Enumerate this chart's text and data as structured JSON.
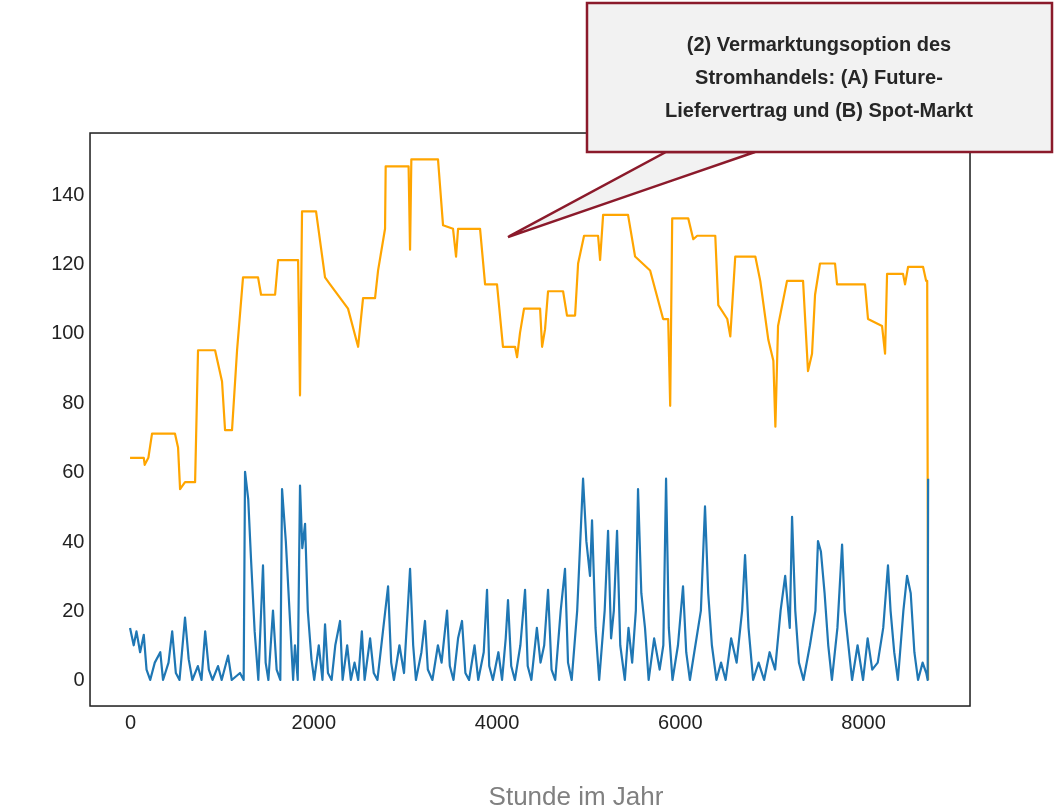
{
  "chart_data": {
    "type": "line",
    "xlabel": "Stunde im Jahr",
    "xlim": [
      -437,
      9167
    ],
    "ylim": [
      -7.5,
      157.6
    ],
    "xticks": [
      0,
      2000,
      4000,
      6000,
      8000
    ],
    "yticks": [
      0,
      20,
      40,
      60,
      80,
      100,
      120,
      140
    ],
    "grid": false,
    "line_style": "solid",
    "marker": "none",
    "annotations": [
      "(2) Vermarktungsoption des Stromhandels: (A) Future-Liefervertrag und (B) Spot-Markt"
    ],
    "series": [
      {
        "color": "#ffa500",
        "x": [
          0,
          150,
          160,
          200,
          240,
          490,
          524,
          546,
          600,
          710,
          742,
          928,
          1004,
          1037,
          1113,
          1168,
          1233,
          1397,
          1430,
          1583,
          1616,
          1834,
          1855,
          1877,
          2030,
          2128,
          2183,
          2379,
          2489,
          2543,
          2674,
          2707,
          2783,
          2790,
          3040,
          3056,
          3070,
          3361,
          3416,
          3525,
          3558,
          3580,
          3820,
          3875,
          4005,
          4070,
          4202,
          4224,
          4256,
          4300,
          4475,
          4497,
          4529,
          4562,
          4726,
          4769,
          4857,
          4890,
          4955,
          5108,
          5130,
          5163,
          5435,
          5512,
          5676,
          5818,
          5873,
          5895,
          5917,
          6092,
          6147,
          6190,
          6387,
          6420,
          6518,
          6551,
          6605,
          6824,
          6878,
          6966,
          7021,
          7043,
          7072,
          7170,
          7345,
          7399,
          7443,
          7476,
          7530,
          7694,
          7716,
          8021,
          8054,
          8207,
          8240,
          8262,
          8436,
          8458,
          8491,
          8655,
          8688,
          8700,
          8710
        ],
        "values": [
          64,
          64,
          62,
          64,
          71,
          71,
          67,
          55,
          57,
          57,
          95,
          95,
          86,
          72,
          72,
          95,
          116,
          116,
          111,
          111,
          121,
          121,
          82,
          135,
          135,
          116,
          114,
          107,
          96,
          110,
          110,
          118,
          130,
          148,
          148,
          124,
          150,
          150,
          131,
          130,
          122,
          130,
          130,
          114,
          114,
          96,
          96,
          93,
          100,
          107,
          107,
          96,
          101,
          112,
          112,
          105,
          105,
          120,
          128,
          128,
          121,
          134,
          134,
          122,
          118,
          104,
          104,
          79,
          133,
          133,
          127,
          128,
          128,
          108,
          104,
          99,
          122,
          122,
          115,
          98,
          92,
          73,
          102,
          115,
          115,
          89,
          94,
          111,
          120,
          120,
          114,
          114,
          104,
          102,
          94,
          117,
          117,
          114,
          119,
          119,
          115,
          115,
          0
        ]
      },
      {
        "color": "#1f77b4",
        "x": [
          0,
          40,
          70,
          110,
          150,
          180,
          220,
          270,
          330,
          360,
          420,
          460,
          500,
          540,
          600,
          640,
          680,
          740,
          780,
          820,
          860,
          900,
          960,
          1000,
          1070,
          1110,
          1200,
          1240,
          1255,
          1290,
          1320,
          1360,
          1400,
          1451,
          1480,
          1510,
          1560,
          1600,
          1640,
          1659,
          1700,
          1740,
          1780,
          1800,
          1830,
          1855,
          1880,
          1910,
          1940,
          1980,
          2010,
          2060,
          2100,
          2128,
          2160,
          2200,
          2240,
          2292,
          2320,
          2370,
          2410,
          2450,
          2490,
          2530,
          2560,
          2620,
          2660,
          2700,
          2760,
          2816,
          2850,
          2880,
          2940,
          2990,
          3030,
          3056,
          3090,
          3120,
          3180,
          3219,
          3250,
          3300,
          3360,
          3400,
          3460,
          3490,
          3530,
          3580,
          3623,
          3660,
          3700,
          3760,
          3800,
          3860,
          3896,
          3920,
          3960,
          4020,
          4060,
          4100,
          4125,
          4160,
          4200,
          4260,
          4311,
          4340,
          4380,
          4440,
          4480,
          4520,
          4562,
          4600,
          4640,
          4700,
          4747,
          4780,
          4820,
          4880,
          4944,
          4980,
          5020,
          5042,
          5080,
          5120,
          5180,
          5217,
          5250,
          5280,
          5315,
          5350,
          5400,
          5440,
          5480,
          5520,
          5544,
          5580,
          5620,
          5660,
          5720,
          5780,
          5820,
          5850,
          5880,
          5920,
          5980,
          6035,
          6070,
          6110,
          6170,
          6230,
          6275,
          6310,
          6350,
          6400,
          6450,
          6500,
          6560,
          6620,
          6680,
          6712,
          6750,
          6800,
          6860,
          6920,
          6980,
          7040,
          7100,
          7150,
          7200,
          7225,
          7260,
          7300,
          7350,
          7420,
          7480,
          7508,
          7540,
          7580,
          7620,
          7660,
          7720,
          7771,
          7800,
          7840,
          7880,
          7940,
          8000,
          8050,
          8100,
          8160,
          8220,
          8272,
          8300,
          8340,
          8380,
          8440,
          8480,
          8520,
          8560,
          8600,
          8650,
          8690,
          8705,
          8710
        ],
        "values": [
          15,
          10,
          14,
          8,
          13,
          3,
          0,
          5,
          8,
          0,
          5,
          14,
          2,
          0,
          18,
          6,
          0,
          4,
          0,
          14,
          3,
          0,
          4,
          0,
          7,
          0,
          2,
          0,
          60,
          52,
          35,
          14,
          0,
          33,
          5,
          0,
          20,
          3,
          0,
          55,
          40,
          20,
          0,
          10,
          0,
          56,
          38,
          45,
          20,
          6,
          0,
          10,
          0,
          16,
          2,
          0,
          10,
          17,
          0,
          10,
          0,
          5,
          0,
          14,
          0,
          12,
          2,
          0,
          14,
          27,
          5,
          0,
          10,
          2,
          20,
          32,
          10,
          0,
          8,
          17,
          3,
          0,
          10,
          5,
          20,
          4,
          0,
          12,
          17,
          2,
          0,
          10,
          0,
          8,
          26,
          4,
          0,
          8,
          0,
          12,
          23,
          4,
          0,
          10,
          26,
          4,
          0,
          15,
          5,
          10,
          26,
          3,
          0,
          20,
          32,
          5,
          0,
          20,
          58,
          40,
          30,
          46,
          15,
          0,
          20,
          43,
          12,
          20,
          43,
          10,
          0,
          15,
          5,
          20,
          55,
          25,
          15,
          0,
          12,
          3,
          10,
          58,
          15,
          0,
          10,
          27,
          8,
          0,
          10,
          20,
          50,
          25,
          10,
          0,
          5,
          0,
          12,
          5,
          20,
          36,
          15,
          0,
          5,
          0,
          8,
          3,
          20,
          30,
          15,
          47,
          20,
          5,
          0,
          10,
          20,
          40,
          37,
          25,
          10,
          0,
          15,
          39,
          20,
          10,
          0,
          10,
          0,
          12,
          3,
          5,
          15,
          33,
          20,
          8,
          0,
          20,
          30,
          25,
          8,
          0,
          5,
          2,
          0,
          58
        ]
      }
    ]
  }
}
